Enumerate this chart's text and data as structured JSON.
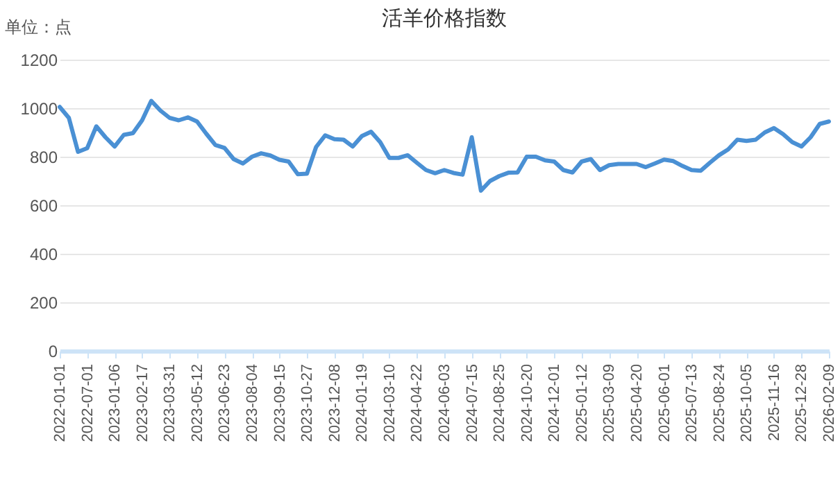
{
  "chart_data": {
    "type": "line",
    "title": "活羊价格指数",
    "ylabel": "单位：点",
    "categories": [
      "2022-01-01",
      null,
      null,
      "2022-07-01",
      null,
      null,
      "2023-01-06",
      null,
      null,
      "2023-02-17",
      null,
      null,
      "2023-03-31",
      null,
      null,
      "2023-05-12",
      null,
      null,
      "2023-06-23",
      null,
      null,
      "2023-08-04",
      null,
      null,
      "2023-09-15",
      null,
      null,
      "2023-10-27",
      null,
      null,
      "2023-12-08",
      null,
      null,
      "2024-01-19",
      null,
      null,
      "2024-03-10",
      null,
      null,
      "2024-04-22",
      null,
      null,
      "2024-06-03",
      null,
      null,
      "2024-07-15",
      null,
      null,
      "2024-08-25",
      null,
      null,
      "2024-10-20",
      null,
      null,
      "2024-12-01",
      null,
      null,
      "2025-01-12",
      null,
      null,
      "2025-03-09",
      null,
      null,
      "2025-04-20",
      null,
      null,
      "2025-06-01",
      null,
      null,
      "2025-07-13",
      null,
      null,
      "2025-08-24",
      null,
      null,
      "2025-10-05",
      null,
      null,
      "2025-11-16",
      null,
      null,
      "2025-12-28",
      null,
      null,
      "2026-02-09"
    ],
    "series": [
      {
        "color": "#4a90d4",
        "values": [
          1005,
          960,
          820,
          835,
          925,
          880,
          842,
          890,
          897,
          950,
          1030,
          990,
          960,
          950,
          962,
          945,
          895,
          848,
          836,
          790,
          772,
          800,
          814,
          805,
          787,
          780,
          728,
          730,
          840,
          888,
          872,
          870,
          842,
          885,
          903,
          860,
          795,
          795,
          806,
          775,
          745,
          732,
          745,
          733,
          726,
          880,
          660,
          700,
          720,
          734,
          735,
          800,
          800,
          785,
          780,
          745,
          735,
          780,
          790,
          745,
          765,
          770,
          770,
          770,
          757,
          772,
          788,
          782,
          762,
          745,
          742,
          775,
          806,
          830,
          870,
          865,
          870,
          900,
          918,
          893,
          860,
          842,
          880,
          935,
          945
        ]
      }
    ],
    "ylim": [
      0,
      1200
    ],
    "yticks": [
      0,
      200,
      400,
      600,
      800,
      1000,
      1200
    ],
    "grid": "y"
  }
}
